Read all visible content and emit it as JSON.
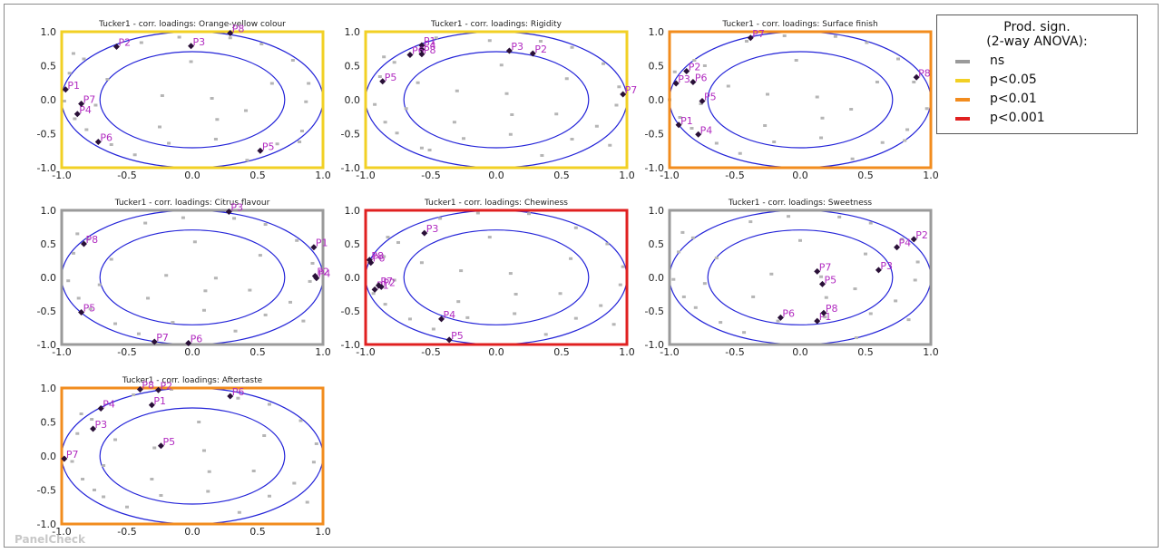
{
  "legend": {
    "title_line1": "Prod. sign.",
    "title_line2": "(2-way ANOVA):",
    "items": [
      {
        "label": "ns",
        "color": "#9a9a9a"
      },
      {
        "label": "p<0.05",
        "color": "#f2d024"
      },
      {
        "label": "p<0.01",
        "color": "#f28c1e"
      },
      {
        "label": "p<0.001",
        "color": "#e02020"
      }
    ]
  },
  "watermark": "PanelCheck",
  "axis_ticks": {
    "x": [
      "-1.0",
      "-0.5",
      "0.0",
      "0.5",
      "1.0"
    ],
    "y": [
      "1.0",
      "0.5",
      "0.0",
      "-0.5",
      "-1.0"
    ]
  },
  "chart_data": [
    {
      "type": "scatter",
      "title": "Tucker1 - corr. loadings: Orange-yellow colour",
      "significance": "p<0.05",
      "frame_color": "#f2d024",
      "xlim": [
        -1,
        1
      ],
      "ylim": [
        -1,
        1
      ],
      "points": [
        {
          "label": "P1",
          "x": -0.97,
          "y": 0.15
        },
        {
          "label": "P2",
          "x": -0.58,
          "y": 0.78
        },
        {
          "label": "P3",
          "x": -0.01,
          "y": 0.79
        },
        {
          "label": "P4",
          "x": -0.88,
          "y": -0.21
        },
        {
          "label": "P5",
          "x": 0.52,
          "y": -0.75
        },
        {
          "label": "P6",
          "x": -0.72,
          "y": -0.62
        },
        {
          "label": "P7",
          "x": -0.85,
          "y": -0.06
        },
        {
          "label": "P8",
          "x": 0.29,
          "y": 0.98
        }
      ]
    },
    {
      "type": "scatter",
      "title": "Tucker1 - corr. loadings: Rigidity",
      "significance": "p<0.05",
      "frame_color": "#f2d024",
      "xlim": [
        -1,
        1
      ],
      "ylim": [
        -1,
        1
      ],
      "points": [
        {
          "label": "P1",
          "x": -0.57,
          "y": 0.8
        },
        {
          "label": "P2",
          "x": 0.28,
          "y": 0.68
        },
        {
          "label": "P3",
          "x": 0.1,
          "y": 0.72
        },
        {
          "label": "P4",
          "x": -0.57,
          "y": 0.74
        },
        {
          "label": "P5",
          "x": -0.87,
          "y": 0.27
        },
        {
          "label": "P6",
          "x": -0.66,
          "y": 0.66
        },
        {
          "label": "P7",
          "x": 0.97,
          "y": 0.08
        },
        {
          "label": "P8",
          "x": -0.57,
          "y": 0.67
        }
      ]
    },
    {
      "type": "scatter",
      "title": "Tucker1 - corr. loadings: Surface finish",
      "significance": "p<0.01",
      "frame_color": "#f28c1e",
      "xlim": [
        -1,
        1
      ],
      "ylim": [
        -1,
        1
      ],
      "points": [
        {
          "label": "P1",
          "x": -0.93,
          "y": -0.37
        },
        {
          "label": "P2",
          "x": -0.87,
          "y": 0.42
        },
        {
          "label": "P3",
          "x": -0.95,
          "y": 0.24
        },
        {
          "label": "P4",
          "x": -0.78,
          "y": -0.51
        },
        {
          "label": "P5",
          "x": -0.75,
          "y": -0.02
        },
        {
          "label": "P6",
          "x": -0.82,
          "y": 0.26
        },
        {
          "label": "P7",
          "x": -0.38,
          "y": 0.91
        },
        {
          "label": "P8",
          "x": 0.89,
          "y": 0.33
        }
      ]
    },
    {
      "type": "scatter",
      "title": "Tucker1 - corr. loadings: Citrus flavour",
      "significance": "ns",
      "frame_color": "#9a9a9a",
      "xlim": [
        -1,
        1
      ],
      "ylim": [
        -1,
        1
      ],
      "points": [
        {
          "label": "P1",
          "x": 0.93,
          "y": 0.45
        },
        {
          "label": "P2",
          "x": 0.94,
          "y": 0.02
        },
        {
          "label": "P3",
          "x": 0.28,
          "y": 0.98
        },
        {
          "label": "P4",
          "x": 0.95,
          "y": -0.01
        },
        {
          "label": "P5",
          "x": -0.85,
          "y": -0.52
        },
        {
          "label": "P6",
          "x": -0.03,
          "y": -0.98
        },
        {
          "label": "P7",
          "x": -0.29,
          "y": -0.96
        },
        {
          "label": "P8",
          "x": -0.83,
          "y": 0.5
        }
      ]
    },
    {
      "type": "scatter",
      "title": "Tucker1 - corr. loadings: Chewiness",
      "significance": "p<0.001",
      "frame_color": "#e02020",
      "xlim": [
        -1,
        1
      ],
      "ylim": [
        -1,
        1
      ],
      "points": [
        {
          "label": "P1",
          "x": -0.93,
          "y": -0.18
        },
        {
          "label": "P2",
          "x": -0.88,
          "y": -0.14
        },
        {
          "label": "P3",
          "x": -0.55,
          "y": 0.66
        },
        {
          "label": "P4",
          "x": -0.42,
          "y": -0.62
        },
        {
          "label": "P5",
          "x": -0.36,
          "y": -0.93
        },
        {
          "label": "P6",
          "x": -0.96,
          "y": 0.22
        },
        {
          "label": "P7",
          "x": -0.9,
          "y": -0.12
        },
        {
          "label": "P8",
          "x": -0.97,
          "y": 0.26
        }
      ]
    },
    {
      "type": "scatter",
      "title": "Tucker1 - corr. loadings: Sweetness",
      "significance": "ns",
      "frame_color": "#9a9a9a",
      "xlim": [
        -1,
        1
      ],
      "ylim": [
        -1,
        1
      ],
      "points": [
        {
          "label": "P1",
          "x": 0.13,
          "y": -0.65
        },
        {
          "label": "P2",
          "x": 0.87,
          "y": 0.57
        },
        {
          "label": "P3",
          "x": 0.6,
          "y": 0.11
        },
        {
          "label": "P4",
          "x": 0.74,
          "y": 0.45
        },
        {
          "label": "P5",
          "x": 0.17,
          "y": -0.1
        },
        {
          "label": "P6",
          "x": -0.15,
          "y": -0.6
        },
        {
          "label": "P7",
          "x": 0.13,
          "y": 0.09
        },
        {
          "label": "P8",
          "x": 0.18,
          "y": -0.53
        }
      ]
    },
    {
      "type": "scatter",
      "title": "Tucker1 - corr. loadings: Aftertaste",
      "significance": "p<0.01",
      "frame_color": "#f28c1e",
      "xlim": [
        -1,
        1
      ],
      "ylim": [
        -1,
        1
      ],
      "points": [
        {
          "label": "P1",
          "x": -0.31,
          "y": 0.75
        },
        {
          "label": "P2",
          "x": -0.26,
          "y": 0.97
        },
        {
          "label": "P3",
          "x": -0.76,
          "y": 0.4
        },
        {
          "label": "P4",
          "x": -0.7,
          "y": 0.7
        },
        {
          "label": "P5",
          "x": -0.24,
          "y": 0.15
        },
        {
          "label": "P6",
          "x": 0.29,
          "y": 0.88
        },
        {
          "label": "P7",
          "x": -0.98,
          "y": -0.04
        },
        {
          "label": "P8",
          "x": -0.4,
          "y": 0.98
        }
      ]
    }
  ]
}
